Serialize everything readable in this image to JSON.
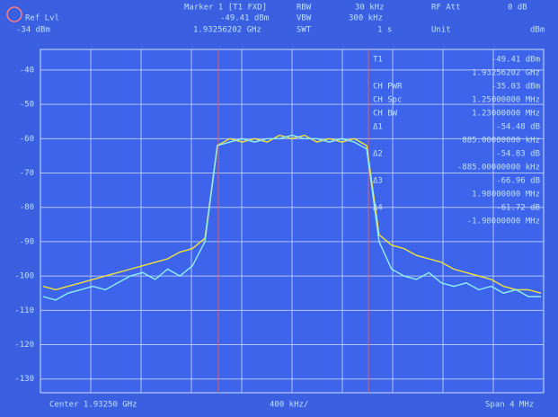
{
  "chart_data": {
    "type": "line",
    "header": {
      "marker_title": "Marker 1 [T1 FXD]",
      "marker_level": "-49.41 dBm",
      "marker_freq": "1.93256202 GHz",
      "ref_label": "Ref Lvl",
      "ref_value": "-34 dBm",
      "rbw_label": "RBW",
      "rbw_value": "30 kHz",
      "vbw_label": "VBW",
      "vbw_value": "300 kHz",
      "swt_label": "SWT",
      "swt_value": "1 s",
      "att_label": "RF Att",
      "att_value": "0 dB",
      "unit_label": "Unit",
      "unit_value": "dBm"
    },
    "marker_table": [
      [
        "T1",
        "-49.41 dBm"
      ],
      [
        null,
        "1.93256202 GHz"
      ],
      [
        "CH PWR",
        "-35.03 dBm"
      ],
      [
        "CH Spc",
        "1.25000000 MHz"
      ],
      [
        "CH BW",
        "1.23000000 MHz"
      ],
      [
        "Δ1",
        "-54.48 dB"
      ],
      [
        null,
        "885.00000000 kHz"
      ],
      [
        "Δ2",
        "-54.83 dB"
      ],
      [
        null,
        "-885.00000000 kHz"
      ],
      [
        "Δ3",
        "-66.96 dB"
      ],
      [
        null,
        "1.98000000 MHz"
      ],
      [
        "Δ4",
        "-61.72 dB"
      ],
      [
        null,
        "-1.98000000 MHz"
      ]
    ],
    "footer": {
      "center": "Center 1.93250 GHz",
      "div": "400 kHz/",
      "span": "Span 4 MHz"
    },
    "categories": [
      null,
      null,
      null,
      null,
      null,
      null,
      null,
      null,
      null,
      null,
      null,
      null,
      null,
      null,
      null,
      null,
      null,
      null,
      null,
      null,
      null,
      null,
      null,
      null,
      null,
      null,
      null,
      null,
      null,
      null,
      null,
      null,
      null,
      null,
      null,
      null,
      null,
      null,
      null,
      null,
      null
    ],
    "series": [
      {
        "name": null,
        "color": "#f2e23a",
        "values": [
          -103,
          -104,
          -103,
          -102,
          -101,
          -100,
          -99,
          -98,
          -97,
          -96,
          -95,
          -93,
          -92,
          -89,
          -62,
          -60,
          -61,
          -60,
          -61,
          -59,
          -60,
          -59,
          -61,
          -60,
          -61,
          -60,
          -62,
          -88,
          -91,
          -92,
          -94,
          -95,
          -96,
          -98,
          -99,
          -100,
          -101,
          -103,
          -104,
          -104,
          -105
        ]
      },
      {
        "name": null,
        "color": "#8ff0f0",
        "values": [
          -106,
          -107,
          -105,
          -104,
          -103,
          -104,
          -102,
          -100,
          -99,
          -101,
          -98,
          -100,
          -97,
          -90,
          -62,
          -61,
          -60,
          -61,
          -60,
          -60,
          -59,
          -60,
          -60,
          -61,
          -60,
          -61,
          -63,
          -90,
          -98,
          -100,
          -101,
          -99,
          -102,
          -103,
          -102,
          -104,
          -103,
          -105,
          -104,
          -106,
          -106
        ]
      }
    ],
    "ylim": [
      -134,
      -34
    ],
    "yticks": [
      -130,
      -120,
      -110,
      -100,
      -90,
      -80,
      -70,
      -60,
      -50,
      -40
    ],
    "xgrid_divisions": 10,
    "grid": true
  }
}
